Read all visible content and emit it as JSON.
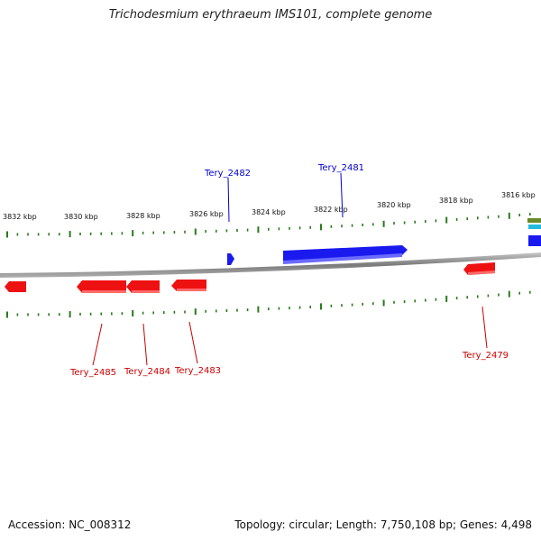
{
  "title": "Trichodesmium erythraeum IMS101, complete genome",
  "footer": {
    "accession": "Accession: NC_008312",
    "summary": "Topology: circular; Length: 7,750,108 bp; Genes: 4,498"
  },
  "scale_labels": [
    "3832 kbp",
    "3830 kbp",
    "3828 kbp",
    "3826 kbp",
    "3824 kbp",
    "3822 kbp",
    "3820 kbp",
    "3818 kbp",
    "3816 kbp"
  ],
  "genes_forward": [
    {
      "name": "Tery_2482"
    },
    {
      "name": "Tery_2481"
    }
  ],
  "genes_reverse": [
    {
      "name": "Tery_2485"
    },
    {
      "name": "Tery_2484"
    },
    {
      "name": "Tery_2483"
    },
    {
      "name": "Tery_2479"
    }
  ],
  "colors": {
    "forward": "#0000ee",
    "reverse": "#ee0000",
    "tick": "#2a7a1a",
    "backbone": "#8a8a8a"
  }
}
